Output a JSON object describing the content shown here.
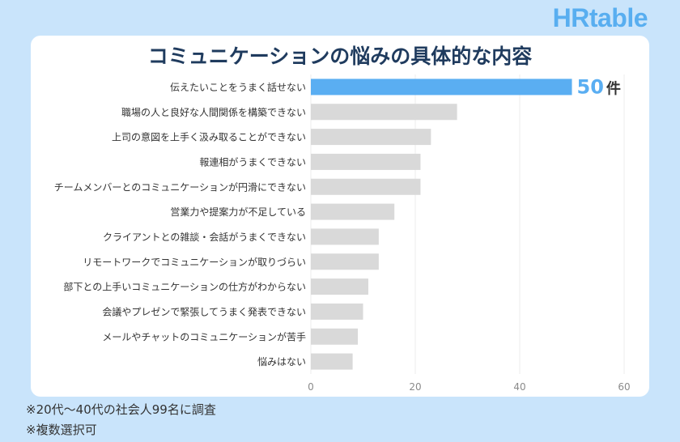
{
  "brand": {
    "logo_text": "HRtable"
  },
  "colors": {
    "background": "#c9e4fb",
    "highlight_bar": "#5aaef2",
    "bar": "#d9d9d9",
    "title": "#1f3b5e",
    "value_label": "#5aaef2"
  },
  "footnotes": {
    "line1": "※20代〜40代の社会人99名に調査",
    "line2": "※複数選択可"
  },
  "chart_data": {
    "type": "bar",
    "orientation": "horizontal",
    "title": "コミュニケーションの悩みの具体的な内容",
    "categories": [
      "伝えたいことをうまく話せない",
      "職場の人と良好な人間関係を構築できない",
      "上司の意図を上手く汲み取ることができない",
      "報連相がうまくできない",
      "チームメンバーとのコミュニケーションが円滑にできない",
      "営業力や提案力が不足している",
      "クライアントとの雑談・会話がうまくできない",
      "リモートワークでコミュニケーションが取りづらい",
      "部下との上手いコミュニケーションの仕方がわからない",
      "会議やプレゼンで緊張してうまく発表できない",
      "メールやチャットのコミュニケーションが苦手",
      "悩みはない"
    ],
    "values": [
      50,
      28,
      23,
      21,
      21,
      16,
      13,
      13,
      11,
      10,
      9,
      8
    ],
    "highlight_index": 0,
    "value_label": {
      "value": "50",
      "unit": "件"
    },
    "xlim": [
      0,
      60
    ],
    "xticks": [
      0,
      20,
      40,
      60
    ],
    "grid": true
  }
}
